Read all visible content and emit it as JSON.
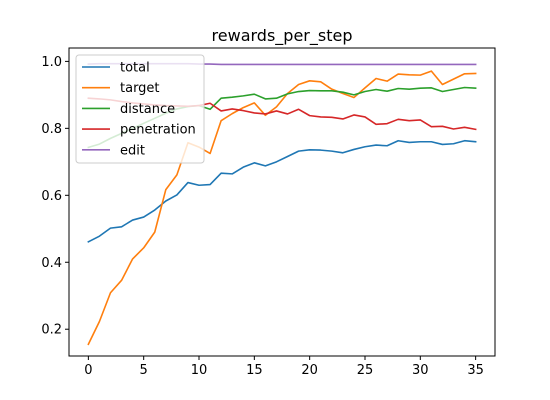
{
  "chart_data": {
    "type": "line",
    "title": "rewards_per_step",
    "xlabel": "",
    "ylabel": "",
    "xlim": [
      -1.75,
      36.75
    ],
    "ylim": [
      0.12,
      1.04
    ],
    "xticks": [
      0,
      5,
      10,
      15,
      20,
      25,
      30,
      35
    ],
    "yticks": [
      0.2,
      0.4,
      0.6,
      0.8,
      1.0
    ],
    "ytick_labels": [
      "0.2",
      "0.4",
      "0.6",
      "0.8",
      "1.0"
    ],
    "grid": false,
    "legend_position": "top-left",
    "x": [
      0,
      1,
      2,
      3,
      4,
      5,
      6,
      7,
      8,
      9,
      10,
      11,
      12,
      13,
      14,
      15,
      16,
      17,
      18,
      19,
      20,
      21,
      22,
      23,
      24,
      25,
      26,
      27,
      28,
      29,
      30,
      31,
      32,
      33,
      34,
      35
    ],
    "series": [
      {
        "name": "total",
        "color": "#1f77b4",
        "values": [
          0.461,
          0.478,
          0.502,
          0.506,
          0.526,
          0.535,
          0.556,
          0.583,
          0.601,
          0.638,
          0.63,
          0.632,
          0.666,
          0.664,
          0.684,
          0.697,
          0.688,
          0.7,
          0.716,
          0.732,
          0.736,
          0.735,
          0.732,
          0.727,
          0.737,
          0.745,
          0.75,
          0.748,
          0.763,
          0.758,
          0.76,
          0.76,
          0.752,
          0.754,
          0.763,
          0.76
        ]
      },
      {
        "name": "target",
        "color": "#ff7f0e",
        "values": [
          0.155,
          0.223,
          0.309,
          0.346,
          0.41,
          0.443,
          0.49,
          0.617,
          0.661,
          0.757,
          0.744,
          0.725,
          0.823,
          0.844,
          0.862,
          0.876,
          0.839,
          0.864,
          0.904,
          0.931,
          0.942,
          0.939,
          0.917,
          0.904,
          0.892,
          0.921,
          0.949,
          0.941,
          0.962,
          0.96,
          0.959,
          0.971,
          0.931,
          0.947,
          0.963,
          0.964
        ]
      },
      {
        "name": "distance",
        "color": "#2ca02c",
        "values": [
          0.743,
          0.753,
          0.77,
          0.785,
          0.8,
          0.815,
          0.83,
          0.845,
          0.858,
          0.865,
          0.868,
          0.857,
          0.89,
          0.893,
          0.897,
          0.902,
          0.888,
          0.89,
          0.903,
          0.91,
          0.913,
          0.912,
          0.912,
          0.908,
          0.9,
          0.91,
          0.916,
          0.911,
          0.919,
          0.917,
          0.92,
          0.921,
          0.91,
          0.916,
          0.922,
          0.92
        ]
      },
      {
        "name": "penetration",
        "color": "#d62728",
        "values": [
          0.89,
          0.888,
          0.885,
          0.88,
          0.876,
          0.873,
          0.87,
          0.868,
          0.867,
          0.866,
          0.868,
          0.875,
          0.852,
          0.858,
          0.853,
          0.846,
          0.843,
          0.852,
          0.843,
          0.857,
          0.838,
          0.834,
          0.833,
          0.828,
          0.84,
          0.834,
          0.812,
          0.814,
          0.827,
          0.823,
          0.825,
          0.805,
          0.806,
          0.798,
          0.803,
          0.797
        ]
      },
      {
        "name": "edit",
        "color": "#9467bd",
        "values": [
          0.992,
          0.993,
          0.993,
          0.993,
          0.993,
          0.993,
          0.993,
          0.993,
          0.993,
          0.993,
          0.992,
          0.992,
          0.991,
          0.991,
          0.991,
          0.991,
          0.991,
          0.991,
          0.991,
          0.991,
          0.991,
          0.991,
          0.991,
          0.991,
          0.991,
          0.991,
          0.991,
          0.991,
          0.991,
          0.991,
          0.991,
          0.991,
          0.991,
          0.991,
          0.991,
          0.991
        ]
      }
    ]
  }
}
